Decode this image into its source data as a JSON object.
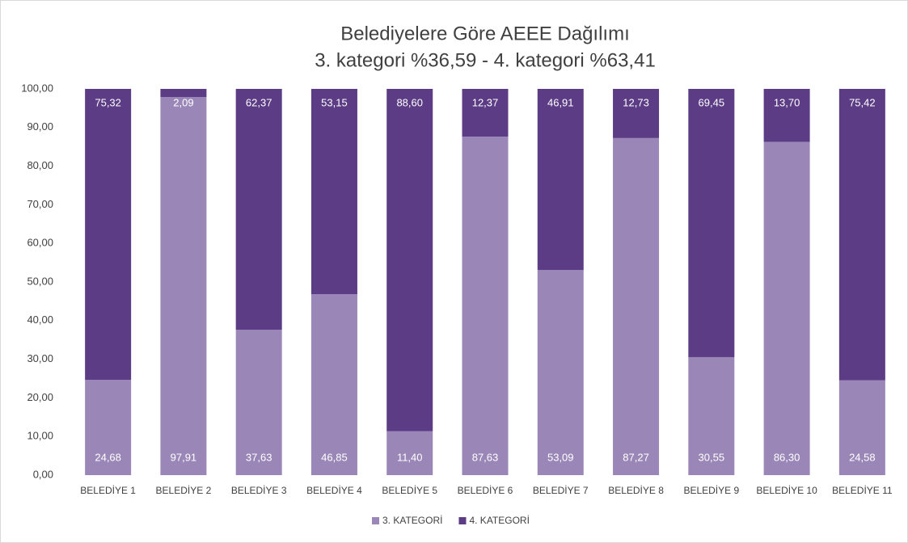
{
  "chart_data": {
    "type": "stacked_bar",
    "title": "Belediyelere Göre AEEE Dağılımı",
    "subtitle": "3. kategori %36,59 - 4. kategori %63,41",
    "categories": [
      "BELEDİYE 1",
      "BELEDİYE 2",
      "BELEDİYE 3",
      "BELEDİYE 4",
      "BELEDİYE 5",
      "BELEDİYE 6",
      "BELEDİYE 7",
      "BELEDİYE 8",
      "BELEDİYE 9",
      "BELEDİYE 10",
      "BELEDİYE 11"
    ],
    "series": [
      {
        "name": "3. KATEGORİ",
        "color": "#9a87b8",
        "values": [
          24.68,
          97.91,
          37.63,
          46.85,
          11.4,
          87.63,
          53.09,
          87.27,
          30.55,
          86.3,
          24.58
        ],
        "value_labels": [
          "24,68",
          "97,91",
          "37,63",
          "46,85",
          "11,40",
          "87,63",
          "53,09",
          "87,27",
          "30,55",
          "86,30",
          "24,58"
        ]
      },
      {
        "name": "4. KATEGORİ",
        "color": "#5c3d85",
        "values": [
          75.32,
          2.09,
          62.37,
          53.15,
          88.6,
          12.37,
          46.91,
          12.73,
          69.45,
          13.7,
          75.42
        ],
        "value_labels": [
          "75,32",
          "2,09",
          "62,37",
          "53,15",
          "88,60",
          "12,37",
          "46,91",
          "12,73",
          "69,45",
          "13,70",
          "75,42"
        ]
      }
    ],
    "ylim": [
      0,
      100
    ],
    "yticks": [
      {
        "value": 0,
        "label": "0,00"
      },
      {
        "value": 10,
        "label": "10,00"
      },
      {
        "value": 20,
        "label": "20,00"
      },
      {
        "value": 30,
        "label": "30,00"
      },
      {
        "value": 40,
        "label": "40,00"
      },
      {
        "value": 50,
        "label": "50,00"
      },
      {
        "value": 60,
        "label": "60,00"
      },
      {
        "value": 70,
        "label": "70,00"
      },
      {
        "value": 80,
        "label": "80,00"
      },
      {
        "value": 90,
        "label": "90,00"
      },
      {
        "value": 100,
        "label": "100,00"
      }
    ],
    "legend": "bottom"
  }
}
